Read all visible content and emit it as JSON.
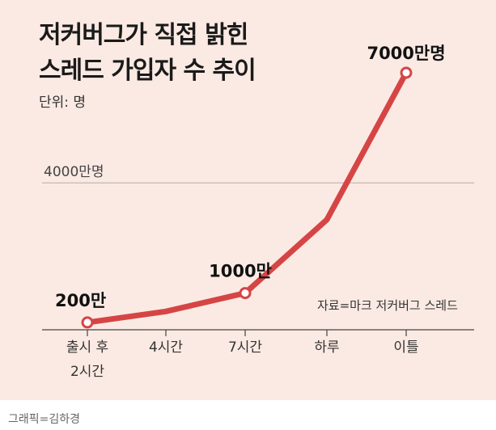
{
  "chart_data": {
    "type": "line",
    "title_lines": [
      "저커버그가 직접 밝힌",
      "스레드 가입자 수 추이"
    ],
    "unit_label": "단위: 명",
    "categories": [
      [
        "출시 후",
        "2시간"
      ],
      [
        "4시간"
      ],
      [
        "7시간"
      ],
      [
        "하루"
      ],
      [
        "이틀"
      ]
    ],
    "values": [
      200,
      500,
      1000,
      3000,
      7000
    ],
    "data_labels": [
      "200만",
      "",
      "1000만",
      "",
      "7000만명"
    ],
    "marked_points": [
      0,
      2,
      4
    ],
    "reference_line": {
      "value": 4000,
      "label": "4000만명"
    },
    "ylim": [
      0,
      7000
    ],
    "source": "자료=마크 저커버그 스레드",
    "line_color": "#d64545",
    "background_color": "#fbeae3"
  },
  "credit": "그래픽=김하경"
}
